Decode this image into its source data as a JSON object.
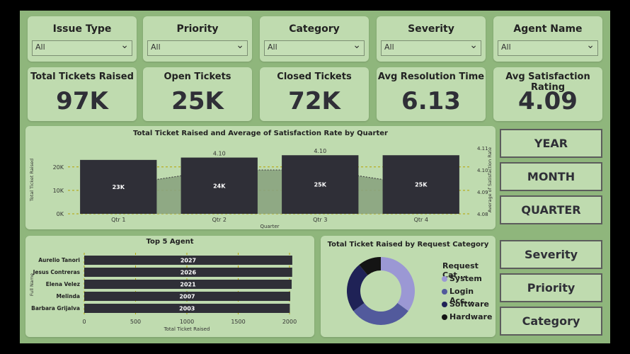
{
  "slicers": [
    {
      "title": "Issue Type",
      "value": "All"
    },
    {
      "title": "Priority",
      "value": "All"
    },
    {
      "title": "Category",
      "value": "All"
    },
    {
      "title": "Severity",
      "value": "All"
    },
    {
      "title": "Agent Name",
      "value": "All"
    }
  ],
  "kpis": [
    {
      "title": "Total Tickets Raised",
      "value": "97K"
    },
    {
      "title": "Open Tickets",
      "value": "25K"
    },
    {
      "title": "Closed Tickets",
      "value": "72K"
    },
    {
      "title": "Avg Resolution Time",
      "value": "6.13"
    },
    {
      "title": "Avg Satisfaction Rating",
      "value": "4.09"
    }
  ],
  "period_buttons": [
    "YEAR",
    "MONTH",
    "QUARTER"
  ],
  "filter_buttons": [
    "Severity",
    "Priority",
    "Category"
  ],
  "colors": {
    "bar": "#2f2f37",
    "area": "#8aa37f",
    "donut1": "#9b98d4",
    "donut2": "#525a9c",
    "donut3": "#1f2256",
    "donut4": "#141414"
  },
  "chart_data": [
    {
      "type": "bar",
      "title": "Total Ticket Raised and Average of Satisfaction Rate by Quarter",
      "xlabel": "Quarter",
      "ylabel": "Total Ticket Raised",
      "y2label": "Average of Satisfaction Rate",
      "categories": [
        "Qtr 1",
        "Qtr 2",
        "Qtr 3",
        "Qtr 4"
      ],
      "values": [
        23,
        24,
        25,
        25
      ],
      "value_labels": [
        "23K",
        "24K",
        "25K",
        "25K"
      ],
      "yticks": [
        "0K",
        "10K",
        "20K"
      ],
      "ylim": [
        0,
        29
      ],
      "y2ticks": [
        "4.08",
        "4.09",
        "4.10",
        "4.11"
      ],
      "y2lim": [
        4.08,
        4.111
      ],
      "line_values": [
        4.093,
        4.1,
        4.1,
        4.093
      ],
      "line_labels": [
        "",
        "4.10",
        "4.10",
        ""
      ]
    },
    {
      "type": "bar",
      "orientation": "horizontal",
      "title": "Top 5 Agent",
      "xlabel": "Total Ticket Raised",
      "ylabel": "Full Name",
      "categories": [
        "Aurelio Tanori",
        "Jesus Contreras",
        "Elena Velez",
        "Melinda",
        "Barbara Grijalva"
      ],
      "values": [
        2027,
        2026,
        2021,
        2007,
        2003
      ],
      "xticks": [
        "0",
        "500",
        "1000",
        "1500",
        "2000"
      ],
      "xlim": [
        0,
        2000
      ]
    },
    {
      "type": "pie",
      "title": "Total Ticket Raised by Request Category",
      "legend_title": "Request Cat...",
      "labels": [
        "System",
        "Login Acc...",
        "Software",
        "Hardware"
      ],
      "values": [
        35,
        30,
        24,
        11
      ]
    }
  ]
}
